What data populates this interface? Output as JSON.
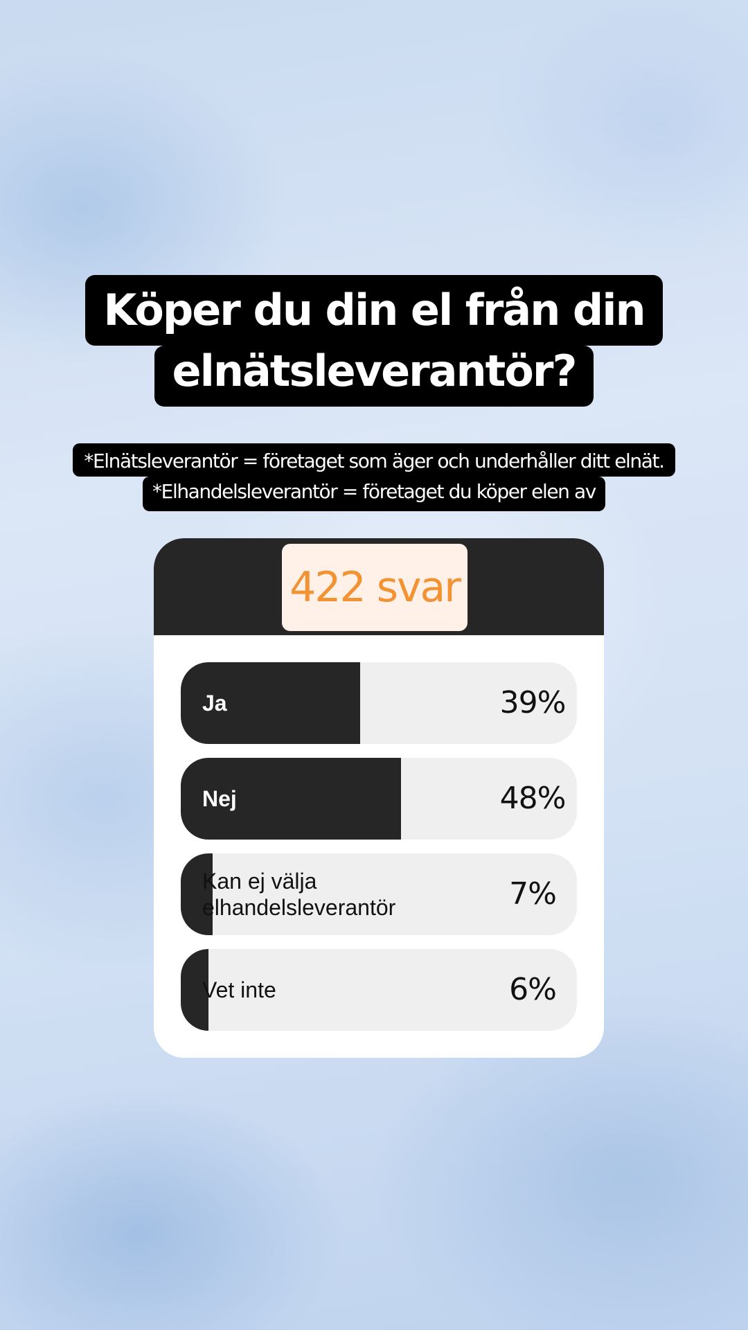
{
  "question": {
    "line1": "Köper du din el från din",
    "line2": "elnätsleverantör?"
  },
  "footnote": {
    "line1": "*Elnätsleverantör = företaget som äger och underhåller ditt elnät.",
    "line2": "*Elhandelsleverantör = företaget du köper elen av"
  },
  "poll": {
    "response_count": "422 svar",
    "options": [
      {
        "label": "Ja",
        "percent_text": "39%",
        "percent": 39
      },
      {
        "label": "Nej",
        "percent_text": "48%",
        "percent": 48
      },
      {
        "label": "Kan ej välja elhandelsleverantör",
        "percent_text": "7%",
        "percent": 7
      },
      {
        "label": "Vet inte",
        "percent_text": "6%",
        "percent": 6
      }
    ]
  },
  "colors": {
    "card_header": "#262626",
    "count_text": "#f39232",
    "count_bg": "#fff1e8",
    "bar_fill": "#262626",
    "bar_track": "#efefef"
  }
}
